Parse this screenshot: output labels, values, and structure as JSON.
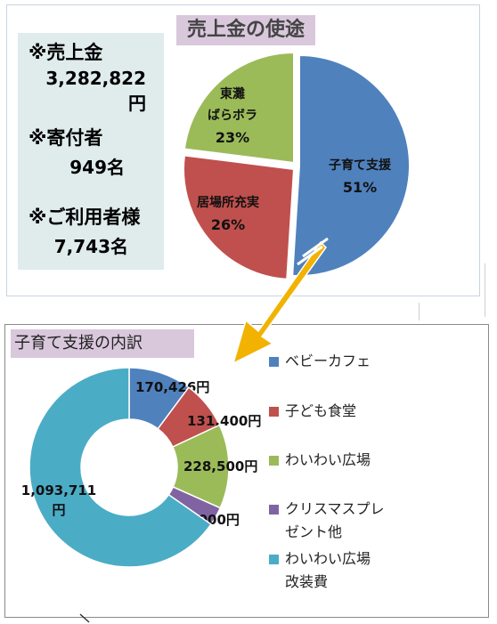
{
  "top": {
    "title": "売上金の使途",
    "stats": [
      {
        "label": "※売上金",
        "value": "3,282,822円"
      },
      {
        "label": "※寄付者",
        "value": "949名"
      },
      {
        "label": "※ご利用者様",
        "value": "7,743名"
      }
    ]
  },
  "bottom": {
    "title": "子育て支援の内訳"
  },
  "colors": {
    "blue": "#4f81bd",
    "red": "#c0504d",
    "green": "#9bbb59",
    "purple": "#8064a2",
    "teal": "#4bacc6",
    "arrow": "#f2b200"
  },
  "chart_data": [
    {
      "type": "pie",
      "title": "売上金の使途",
      "slices": [
        {
          "label_lines": [
            "子育て支援"
          ],
          "percent_label": "51%",
          "value": 51,
          "color": "#4f81bd"
        },
        {
          "label_lines": [
            "居場所充実"
          ],
          "percent_label": "26%",
          "value": 26,
          "color": "#c0504d"
        },
        {
          "label_lines": [
            "東灘",
            "ばらボラ"
          ],
          "percent_label": "23%",
          "value": 23,
          "color": "#9bbb59"
        }
      ]
    },
    {
      "type": "pie",
      "title": "子育て支援の内訳",
      "donut": true,
      "legend_position": "right",
      "slices": [
        {
          "legend": [
            "ベビーカフェ"
          ],
          "value": 170426,
          "data_label": [
            "170,426円"
          ],
          "color": "#4f81bd"
        },
        {
          "legend": [
            "子ども食堂"
          ],
          "value": 131400,
          "data_label": [
            "131,400円"
          ],
          "color": "#c0504d"
        },
        {
          "legend": [
            "わいわい広場"
          ],
          "value": 228500,
          "data_label": [
            "228,500円"
          ],
          "color": "#9bbb59"
        },
        {
          "legend": [
            "クリスマスプレ",
            "ゼント他"
          ],
          "value": 50000,
          "data_label": [
            "50,000円"
          ],
          "color": "#8064a2"
        },
        {
          "legend": [
            "わいわい広場",
            "改装費"
          ],
          "value": 1093711,
          "data_label": [
            "1,093,711",
            "円"
          ],
          "color": "#4bacc6"
        }
      ]
    }
  ]
}
